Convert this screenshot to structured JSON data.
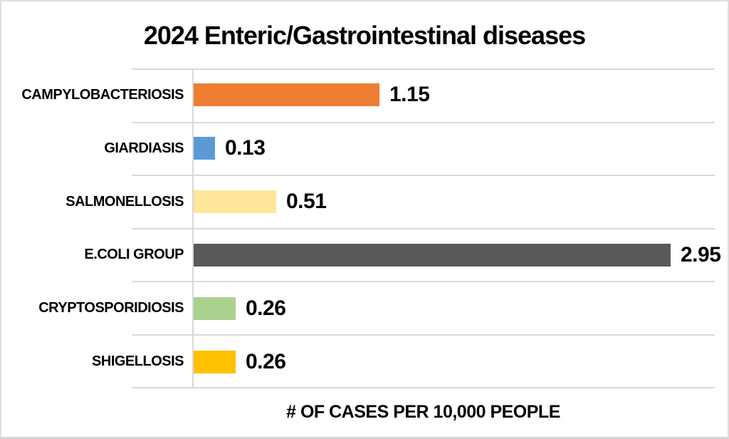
{
  "page": {
    "background": "#FFFFFF",
    "frame_border_color": "#DEDEDE"
  },
  "chart_data": {
    "type": "bar",
    "orientation": "horizontal",
    "title": "2024 Enteric/Gastrointestinal diseases",
    "xlabel": "# OF CASES PER 10,000 PEOPLE",
    "categories": [
      "CAMPYLOBACTERIOSIS",
      "GIARDIASIS",
      "SALMONELLOSIS",
      "E.COLI GROUP",
      "CRYPTOSPORIDIOSIS",
      "SHIGELLOSIS"
    ],
    "values": [
      1.15,
      0.13,
      0.51,
      2.95,
      0.26,
      0.26
    ],
    "value_labels": [
      "1.15",
      "0.13",
      "0.51",
      "2.95",
      "0.26",
      "0.26"
    ],
    "bar_colors": [
      "#ED7D31",
      "#5B9BD5",
      "#FFE699",
      "#595959",
      "#A9D18E",
      "#FFC000"
    ],
    "gridline_color": "#D9D9D9",
    "axis_line_color": "#D9D9D9",
    "text_color": "#000000",
    "grid": "horizontal category separators, no value gridlines, no tick labels",
    "legend": false
  }
}
